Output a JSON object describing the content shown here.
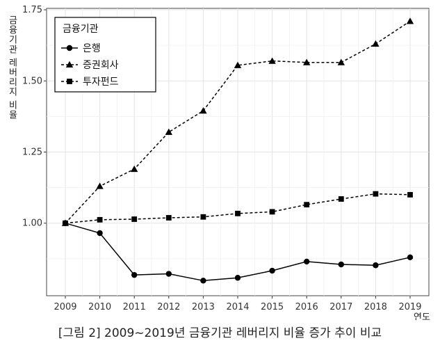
{
  "caption": "[그림 2] 2009~2019년 금융기관 레버리지 비율 증가 추이 비교",
  "chart_data": {
    "type": "line",
    "title": "",
    "xlabel": "연도",
    "ylabel": "금융기관 레버리지 비율",
    "x": [
      2009,
      2010,
      2011,
      2012,
      2013,
      2014,
      2015,
      2016,
      2017,
      2018,
      2019
    ],
    "xlim": [
      2009,
      2019
    ],
    "ylim": [
      0.75,
      1.75
    ],
    "yticks": [
      1.0,
      1.25,
      1.5,
      1.75
    ],
    "ytick_labels": [
      "1.00",
      "1.25",
      "1.50",
      "1.75"
    ],
    "grid": true,
    "legend": {
      "title": "금융기관",
      "placement": "top-left"
    },
    "series": [
      {
        "name": "은행",
        "marker": "circle",
        "line": "solid",
        "color": "#000000",
        "values": [
          1.0,
          0.965,
          0.818,
          0.822,
          0.798,
          0.808,
          0.833,
          0.865,
          0.855,
          0.852,
          0.88
        ]
      },
      {
        "name": "증권회사",
        "marker": "triangle",
        "line": "dashed",
        "color": "#000000",
        "values": [
          1.0,
          1.13,
          1.19,
          1.32,
          1.395,
          1.555,
          1.57,
          1.565,
          1.565,
          1.63,
          1.71
        ]
      },
      {
        "name": "투자펀드",
        "marker": "square",
        "line": "dashed",
        "color": "#000000",
        "values": [
          1.0,
          1.012,
          1.014,
          1.019,
          1.022,
          1.034,
          1.04,
          1.065,
          1.085,
          1.103,
          1.1
        ]
      }
    ]
  }
}
